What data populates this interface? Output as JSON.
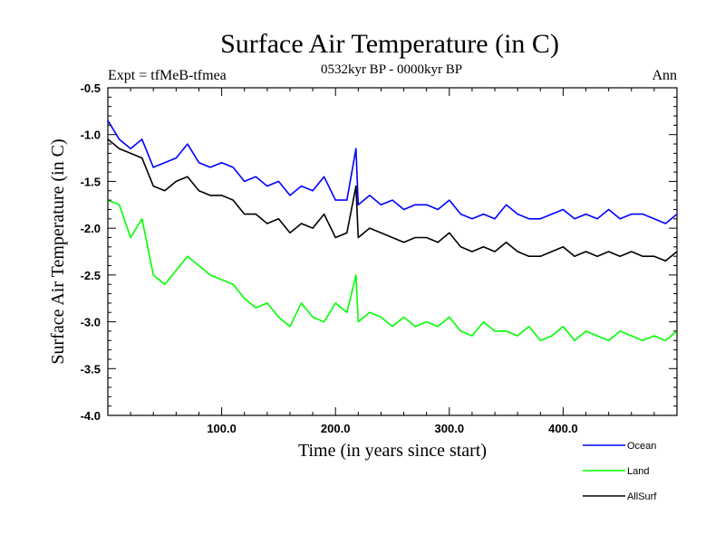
{
  "chart_data": {
    "type": "line",
    "title": "Surface Air Temperature (in C)",
    "subtitle": "0532kyr BP - 0000kyr BP",
    "left_label": "Expt = tfMeB-tfmea",
    "right_label": "Ann",
    "xlabel": "Time (in years since start)",
    "ylabel": "Surface Air Temperature (in C)",
    "xlim": [
      0,
      500
    ],
    "ylim": [
      -4.0,
      -0.5
    ],
    "x_ticks": [
      100,
      200,
      300,
      400
    ],
    "x_tick_labels": [
      "100.0",
      "200.0",
      "300.0",
      "400.0"
    ],
    "y_ticks": [
      -4.0,
      -3.5,
      -3.0,
      -2.5,
      -2.0,
      -1.5,
      -1.0,
      -0.5
    ],
    "y_tick_labels": [
      "-4.0",
      "-3.5",
      "-3.0",
      "-2.5",
      "-2.0",
      "-1.5",
      "-1.0",
      "-0.5"
    ],
    "grid": false,
    "legend_position": "bottom-right",
    "series": [
      {
        "name": "Ocean",
        "color": "#0000ff",
        "x": [
          0,
          10,
          20,
          30,
          40,
          50,
          60,
          70,
          80,
          90,
          100,
          110,
          120,
          130,
          140,
          150,
          160,
          170,
          180,
          190,
          200,
          210,
          218,
          220,
          230,
          240,
          250,
          260,
          270,
          280,
          290,
          300,
          310,
          320,
          330,
          340,
          350,
          360,
          370,
          380,
          390,
          400,
          410,
          420,
          430,
          440,
          450,
          460,
          470,
          480,
          490,
          500
        ],
        "values": [
          -0.85,
          -1.05,
          -1.15,
          -1.05,
          -1.35,
          -1.3,
          -1.25,
          -1.1,
          -1.3,
          -1.35,
          -1.3,
          -1.35,
          -1.5,
          -1.45,
          -1.55,
          -1.5,
          -1.65,
          -1.55,
          -1.6,
          -1.45,
          -1.7,
          -1.7,
          -1.15,
          -1.75,
          -1.65,
          -1.75,
          -1.7,
          -1.8,
          -1.75,
          -1.75,
          -1.8,
          -1.7,
          -1.85,
          -1.9,
          -1.85,
          -1.9,
          -1.75,
          -1.85,
          -1.9,
          -1.9,
          -1.85,
          -1.8,
          -1.9,
          -1.85,
          -1.9,
          -1.8,
          -1.9,
          -1.85,
          -1.85,
          -1.9,
          -1.95,
          -1.85
        ]
      },
      {
        "name": "Land",
        "color": "#00ff00",
        "x": [
          0,
          10,
          20,
          30,
          40,
          50,
          60,
          70,
          80,
          90,
          100,
          110,
          120,
          130,
          140,
          150,
          160,
          170,
          180,
          190,
          200,
          210,
          218,
          220,
          230,
          240,
          250,
          260,
          270,
          280,
          290,
          300,
          310,
          320,
          330,
          340,
          350,
          360,
          370,
          380,
          390,
          400,
          410,
          420,
          430,
          440,
          450,
          460,
          470,
          480,
          490,
          500
        ],
        "values": [
          -1.7,
          -1.75,
          -2.1,
          -1.9,
          -2.5,
          -2.6,
          -2.45,
          -2.3,
          -2.4,
          -2.5,
          -2.55,
          -2.6,
          -2.75,
          -2.85,
          -2.8,
          -2.95,
          -3.05,
          -2.8,
          -2.95,
          -3.0,
          -2.8,
          -2.9,
          -2.5,
          -3.0,
          -2.9,
          -2.95,
          -3.05,
          -2.95,
          -3.05,
          -3.0,
          -3.05,
          -2.95,
          -3.1,
          -3.15,
          -3.0,
          -3.1,
          -3.1,
          -3.15,
          -3.05,
          -3.2,
          -3.15,
          -3.05,
          -3.2,
          -3.1,
          -3.15,
          -3.2,
          -3.1,
          -3.15,
          -3.2,
          -3.15,
          -3.2,
          -3.1
        ]
      },
      {
        "name": "AllSurf",
        "color": "#000000",
        "x": [
          0,
          10,
          20,
          30,
          40,
          50,
          60,
          70,
          80,
          90,
          100,
          110,
          120,
          130,
          140,
          150,
          160,
          170,
          180,
          190,
          200,
          210,
          218,
          220,
          230,
          240,
          250,
          260,
          270,
          280,
          290,
          300,
          310,
          320,
          330,
          340,
          350,
          360,
          370,
          380,
          390,
          400,
          410,
          420,
          430,
          440,
          450,
          460,
          470,
          480,
          490,
          500
        ],
        "values": [
          -1.05,
          -1.15,
          -1.2,
          -1.25,
          -1.55,
          -1.6,
          -1.5,
          -1.45,
          -1.6,
          -1.65,
          -1.65,
          -1.7,
          -1.85,
          -1.85,
          -1.95,
          -1.9,
          -2.05,
          -1.95,
          -2.0,
          -1.85,
          -2.1,
          -2.05,
          -1.55,
          -2.1,
          -2.0,
          -2.05,
          -2.1,
          -2.15,
          -2.1,
          -2.1,
          -2.15,
          -2.05,
          -2.2,
          -2.25,
          -2.2,
          -2.25,
          -2.15,
          -2.25,
          -2.3,
          -2.3,
          -2.25,
          -2.2,
          -2.3,
          -2.25,
          -2.3,
          -2.25,
          -2.3,
          -2.25,
          -2.3,
          -2.3,
          -2.35,
          -2.25
        ]
      }
    ]
  }
}
